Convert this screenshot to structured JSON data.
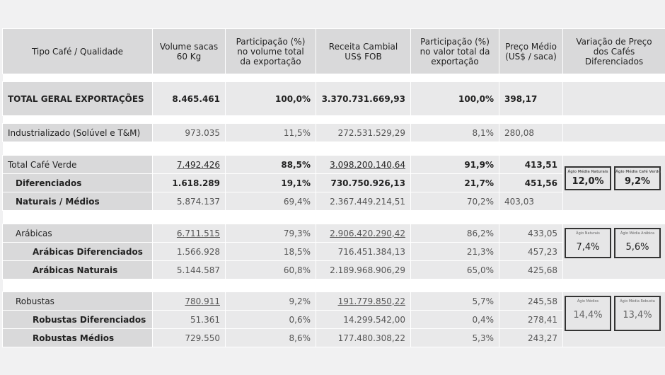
{
  "headers": [
    "Tipo Café / Qualidade",
    "Volume sacas 60 Kg",
    "Participação (%) no volume total da exportação",
    "Receita Cambial US$ FOB",
    "Participação (%) no valor total da exportação",
    "Preço Médio (US$ / saca)",
    "Variação de Preço dos Cafés Diferenciados"
  ],
  "rows": [
    {
      "name": "TOTAL GERAL EXPORTAÇÕES",
      "vol": "8.465.461",
      "pv": "100,0%",
      "rec": "3.370.731.669,93",
      "pr": "100,0%",
      "preco": "398,17"
    },
    {
      "name": "Industrializado (Solúvel e T&M)",
      "vol": "973.035",
      "pv": "11,5%",
      "rec": "272.531.529,29",
      "pr": "8,1%",
      "preco": "280,08"
    },
    {
      "name": "Total Café Verde",
      "vol": "7.492.426",
      "pv": "88,5%",
      "rec": "3.098.200.140,64",
      "pr": "91,9%",
      "preco": "413,51"
    },
    {
      "name": "Diferenciados",
      "vol": "1.618.289",
      "pv": "19,1%",
      "rec": "730.750.926,13",
      "pr": "21,7%",
      "preco": "451,56"
    },
    {
      "name": "Naturais / Médios",
      "vol": "5.874.137",
      "pv": "69,4%",
      "rec": "2.367.449.214,51",
      "pr": "70,2%",
      "preco": "403,03"
    },
    {
      "name": "Arábicas",
      "vol": "6.711.515",
      "pv": "79,3%",
      "rec": "2.906.420.290,42",
      "pr": "86,2%",
      "preco": "433,05"
    },
    {
      "name": "Arábicas Diferenciados",
      "vol": "1.566.928",
      "pv": "18,5%",
      "rec": "716.451.384,13",
      "pr": "21,3%",
      "preco": "457,23"
    },
    {
      "name": "Arábicas Naturais",
      "vol": "5.144.587",
      "pv": "60,8%",
      "rec": "2.189.968.906,29",
      "pr": "65,0%",
      "preco": "425,68"
    },
    {
      "name": "Robustas",
      "vol": "780.911",
      "pv": "9,2%",
      "rec": "191.779.850,22",
      "pr": "5,7%",
      "preco": "245,58"
    },
    {
      "name": "Robustas Diferenciados",
      "vol": "51.361",
      "pv": "0,6%",
      "rec": "14.299.542,00",
      "pr": "0,4%",
      "preco": "278,41"
    },
    {
      "name": "Robustas Médios",
      "vol": "729.550",
      "pv": "8,6%",
      "rec": "177.480.308,22",
      "pr": "5,3%",
      "preco": "243,27"
    }
  ],
  "boxes": [
    {
      "label": "Ágio Média Naturais",
      "value": "12,0%"
    },
    {
      "label": "Ágio Média Café Verde",
      "value": "9,2%"
    },
    {
      "label": "Ágio Naturais",
      "value": "7,4%"
    },
    {
      "label": "Ágio Média Arábica",
      "value": "5,6%"
    },
    {
      "label": "Ágio Médios",
      "value": "14,4%"
    },
    {
      "label": "Ágio Média Robusta",
      "value": "13,4%"
    }
  ]
}
